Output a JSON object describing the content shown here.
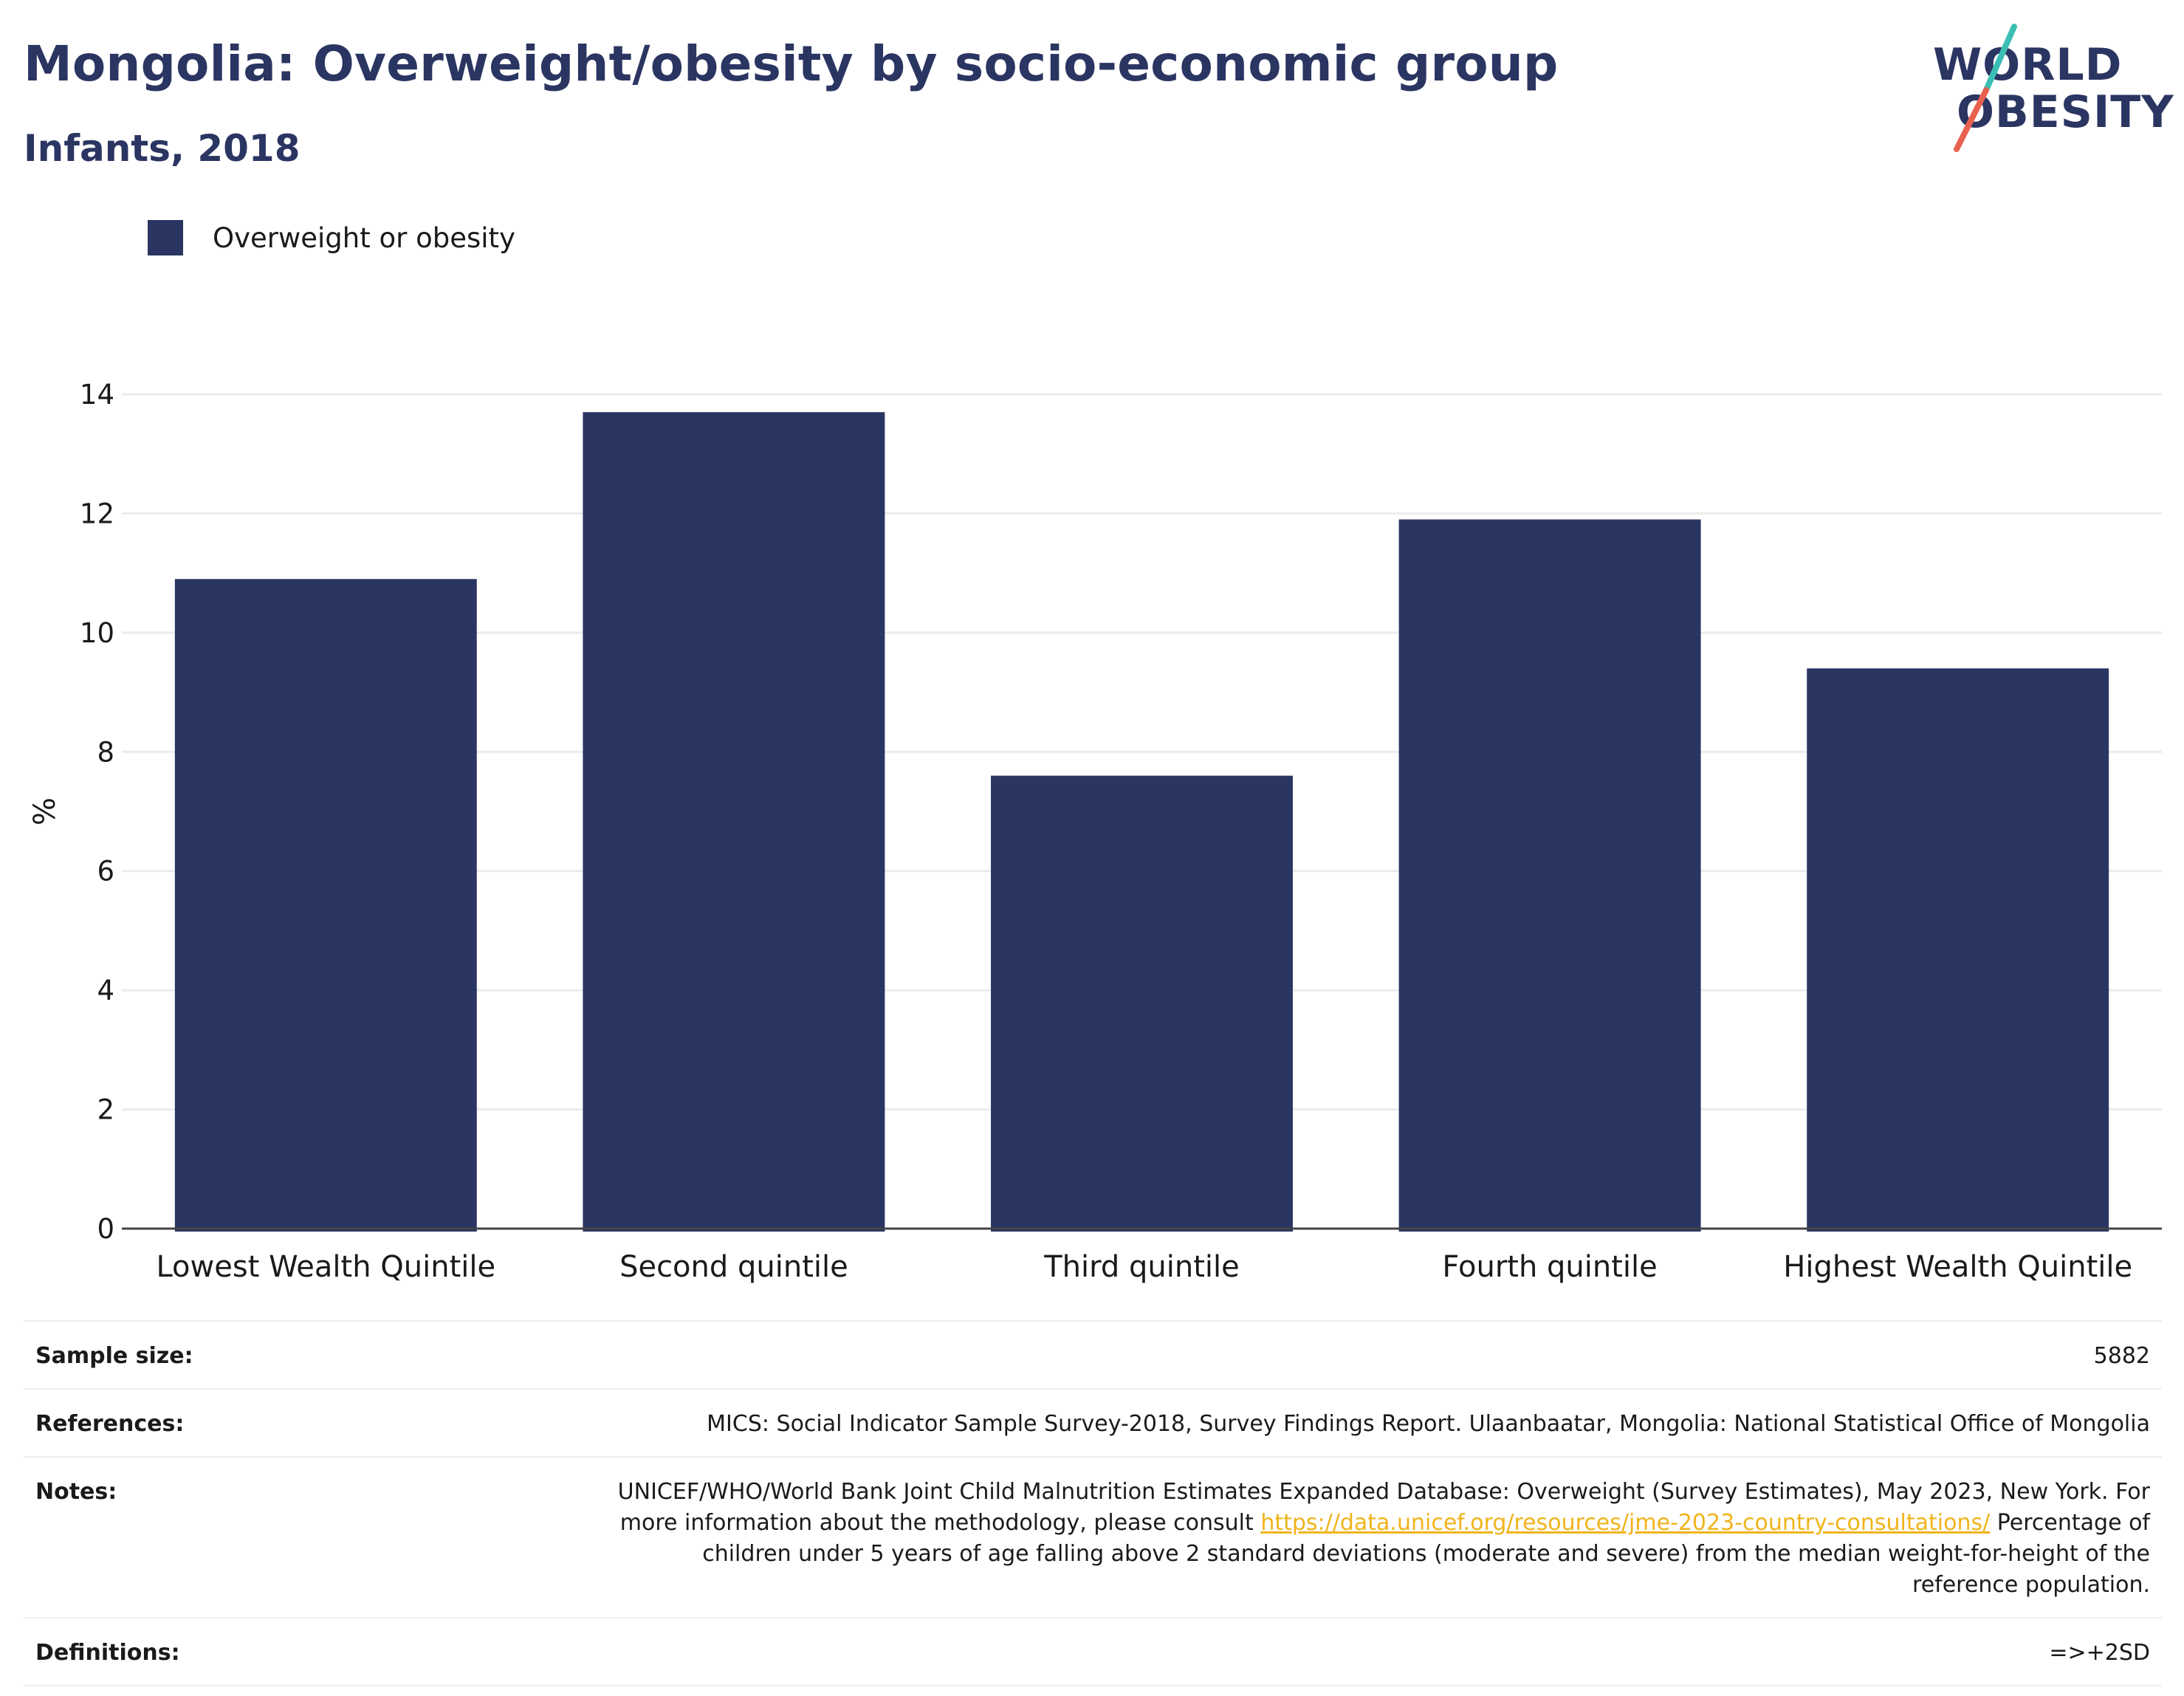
{
  "header": {
    "title": "Mongolia: Overweight/obesity by socio-economic group",
    "subtitle": "Infants, 2018"
  },
  "logo": {
    "line1": "WORLD",
    "line2": "OBESITY",
    "colors": {
      "text": "#2b3562",
      "slash_top": "#3bbfb4",
      "slash_bottom": "#e8614f"
    }
  },
  "colors": {
    "bar": "#2b3562",
    "grid": "#ebebeb",
    "axis": "#444444",
    "link": "#f0b41c"
  },
  "legend": {
    "label": "Overweight or obesity"
  },
  "chart_data": {
    "type": "bar",
    "categories": [
      "Lowest Wealth Quintile",
      "Second quintile",
      "Third quintile",
      "Fourth quintile",
      "Highest Wealth Quintile"
    ],
    "series": [
      {
        "name": "Overweight or obesity",
        "values": [
          10.9,
          13.7,
          7.6,
          11.9,
          9.4
        ]
      }
    ],
    "xlabel": "",
    "ylabel": "%",
    "ylim": [
      0,
      14
    ],
    "yticks": [
      0,
      2,
      4,
      6,
      8,
      10,
      12,
      14
    ],
    "grid": true,
    "legend": "top-left"
  },
  "info": {
    "sample_size_label": "Sample size:",
    "sample_size_value": "5882",
    "references_label": "References:",
    "references_value": "MICS: Social Indicator Sample Survey-2018, Survey Findings Report. Ulaanbaatar, Mongolia: National Statistical Office of Mongolia",
    "notes_label": "Notes:",
    "notes_text_before": "UNICEF/WHO/World Bank Joint Child Malnutrition Estimates Expanded Database: Overweight (Survey Estimates), May 2023, New York. For more information about the methodology, please consult ",
    "notes_link": "https://data.unicef.org/resources/jme-2023-country-consultations/",
    "notes_text_after": " Percentage of children under 5 years of age falling above 2 standard deviations (moderate and severe) from the median weight-for-height of the reference population.",
    "definitions_label": "Definitions:",
    "definitions_value": "=>+2SD"
  }
}
